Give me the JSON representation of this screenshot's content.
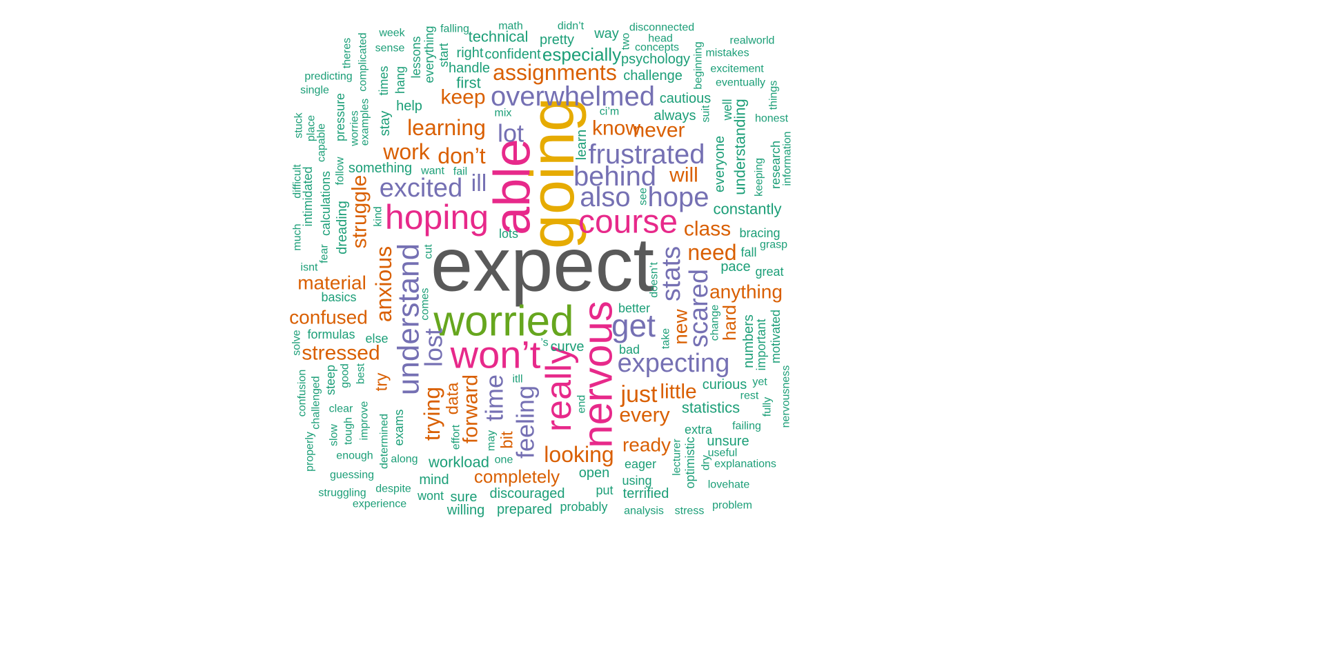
{
  "palette": {
    "gray": "#595959",
    "teal": "#1b9e77",
    "orange": "#d95f02",
    "purple": "#7570b3",
    "pink": "#e7298a",
    "green": "#66a61e",
    "gold": "#e6ab02"
  },
  "words": [
    {
      "text": "expect",
      "color": "gray"
    },
    {
      "text": "going",
      "color": "gold"
    },
    {
      "text": "worried",
      "color": "green"
    },
    {
      "text": "able",
      "color": "pink"
    },
    {
      "text": "won’t",
      "color": "pink"
    },
    {
      "text": "nervous",
      "color": "pink"
    },
    {
      "text": "really",
      "color": "pink"
    },
    {
      "text": "hoping",
      "color": "pink"
    },
    {
      "text": "course",
      "color": "pink"
    },
    {
      "text": "understand",
      "color": "purple"
    },
    {
      "text": "get",
      "color": "purple"
    },
    {
      "text": "overwhelmed",
      "color": "purple"
    },
    {
      "text": "frustrated",
      "color": "purple"
    },
    {
      "text": "behind",
      "color": "purple"
    },
    {
      "text": "also",
      "color": "purple"
    },
    {
      "text": "hope",
      "color": "purple"
    },
    {
      "text": "excited",
      "color": "purple"
    },
    {
      "text": "expecting",
      "color": "purple"
    },
    {
      "text": "stats",
      "color": "purple"
    },
    {
      "text": "scared",
      "color": "purple"
    },
    {
      "text": "time",
      "color": "purple"
    },
    {
      "text": "lost",
      "color": "purple"
    },
    {
      "text": "feeling",
      "color": "purple"
    },
    {
      "text": "lot",
      "color": "purple"
    },
    {
      "text": "ill",
      "color": "purple"
    },
    {
      "text": "assignments",
      "color": "orange"
    },
    {
      "text": "keep",
      "color": "orange"
    },
    {
      "text": "learning",
      "color": "orange"
    },
    {
      "text": "work",
      "color": "orange"
    },
    {
      "text": "don’t",
      "color": "orange"
    },
    {
      "text": "know",
      "color": "orange"
    },
    {
      "text": "never",
      "color": "orange"
    },
    {
      "text": "will",
      "color": "orange"
    },
    {
      "text": "class",
      "color": "orange"
    },
    {
      "text": "need",
      "color": "orange"
    },
    {
      "text": "struggle",
      "color": "orange"
    },
    {
      "text": "anxious",
      "color": "orange"
    },
    {
      "text": "material",
      "color": "orange"
    },
    {
      "text": "confused",
      "color": "orange"
    },
    {
      "text": "stressed",
      "color": "orange"
    },
    {
      "text": "anything",
      "color": "orange"
    },
    {
      "text": "hard",
      "color": "orange"
    },
    {
      "text": "new",
      "color": "orange"
    },
    {
      "text": "just",
      "color": "orange"
    },
    {
      "text": "little",
      "color": "orange"
    },
    {
      "text": "every",
      "color": "orange"
    },
    {
      "text": "ready",
      "color": "orange"
    },
    {
      "text": "looking",
      "color": "orange"
    },
    {
      "text": "completely",
      "color": "orange"
    },
    {
      "text": "trying",
      "color": "orange"
    },
    {
      "text": "forward",
      "color": "orange"
    },
    {
      "text": "try",
      "color": "orange"
    },
    {
      "text": "data",
      "color": "orange"
    },
    {
      "text": "bit",
      "color": "orange"
    },
    {
      "text": "especially",
      "color": "teal"
    },
    {
      "text": "technical",
      "color": "teal"
    },
    {
      "text": "confident",
      "color": "teal"
    },
    {
      "text": "right",
      "color": "teal"
    },
    {
      "text": "handle",
      "color": "teal"
    },
    {
      "text": "first",
      "color": "teal"
    },
    {
      "text": "pretty",
      "color": "teal"
    },
    {
      "text": "way",
      "color": "teal"
    },
    {
      "text": "math",
      "color": "teal"
    },
    {
      "text": "didn’t",
      "color": "teal"
    },
    {
      "text": "disconnected",
      "color": "teal"
    },
    {
      "text": "head",
      "color": "teal"
    },
    {
      "text": "concepts",
      "color": "teal"
    },
    {
      "text": "psychology",
      "color": "teal"
    },
    {
      "text": "challenge",
      "color": "teal"
    },
    {
      "text": "two",
      "color": "teal"
    },
    {
      "text": "realworld",
      "color": "teal"
    },
    {
      "text": "mistakes",
      "color": "teal"
    },
    {
      "text": "excitement",
      "color": "teal"
    },
    {
      "text": "eventually",
      "color": "teal"
    },
    {
      "text": "honest",
      "color": "teal"
    },
    {
      "text": "week",
      "color": "teal"
    },
    {
      "text": "sense",
      "color": "teal"
    },
    {
      "text": "falling",
      "color": "teal"
    },
    {
      "text": "predicting",
      "color": "teal"
    },
    {
      "text": "single",
      "color": "teal"
    },
    {
      "text": "help",
      "color": "teal"
    },
    {
      "text": "mix",
      "color": "teal"
    },
    {
      "text": "ci’m",
      "color": "teal"
    },
    {
      "text": "cautious",
      "color": "teal"
    },
    {
      "text": "always",
      "color": "teal"
    },
    {
      "text": "something",
      "color": "teal"
    },
    {
      "text": "want",
      "color": "teal"
    },
    {
      "text": "fail",
      "color": "teal"
    },
    {
      "text": "lots",
      "color": "teal"
    },
    {
      "text": "constantly",
      "color": "teal"
    },
    {
      "text": "bracing",
      "color": "teal"
    },
    {
      "text": "fall",
      "color": "teal"
    },
    {
      "text": "grasp",
      "color": "teal"
    },
    {
      "text": "pace",
      "color": "teal"
    },
    {
      "text": "great",
      "color": "teal"
    },
    {
      "text": "isnt",
      "color": "teal"
    },
    {
      "text": "basics",
      "color": "teal"
    },
    {
      "text": "formulas",
      "color": "teal"
    },
    {
      "text": "else",
      "color": "teal"
    },
    {
      "text": "’s",
      "color": "teal"
    },
    {
      "text": "curve",
      "color": "teal"
    },
    {
      "text": "better",
      "color": "teal"
    },
    {
      "text": "bad",
      "color": "teal"
    },
    {
      "text": "curious",
      "color": "teal"
    },
    {
      "text": "rest",
      "color": "teal"
    },
    {
      "text": "yet",
      "color": "teal"
    },
    {
      "text": "statistics",
      "color": "teal"
    },
    {
      "text": "extra",
      "color": "teal"
    },
    {
      "text": "failing",
      "color": "teal"
    },
    {
      "text": "unsure",
      "color": "teal"
    },
    {
      "text": "useful",
      "color": "teal"
    },
    {
      "text": "explanations",
      "color": "teal"
    },
    {
      "text": "eager",
      "color": "teal"
    },
    {
      "text": "using",
      "color": "teal"
    },
    {
      "text": "terrified",
      "color": "teal"
    },
    {
      "text": "lovehate",
      "color": "teal"
    },
    {
      "text": "analysis",
      "color": "teal"
    },
    {
      "text": "stress",
      "color": "teal"
    },
    {
      "text": "problem",
      "color": "teal"
    },
    {
      "text": "put",
      "color": "teal"
    },
    {
      "text": "probably",
      "color": "teal"
    },
    {
      "text": "prepared",
      "color": "teal"
    },
    {
      "text": "willing",
      "color": "teal"
    },
    {
      "text": "discouraged",
      "color": "teal"
    },
    {
      "text": "wont",
      "color": "teal"
    },
    {
      "text": "sure",
      "color": "teal"
    },
    {
      "text": "mind",
      "color": "teal"
    },
    {
      "text": "workload",
      "color": "teal"
    },
    {
      "text": "one",
      "color": "teal"
    },
    {
      "text": "along",
      "color": "teal"
    },
    {
      "text": "despite",
      "color": "teal"
    },
    {
      "text": "experience",
      "color": "teal"
    },
    {
      "text": "struggling",
      "color": "teal"
    },
    {
      "text": "guessing",
      "color": "teal"
    },
    {
      "text": "enough",
      "color": "teal"
    },
    {
      "text": "open",
      "color": "teal"
    },
    {
      "text": "itll",
      "color": "teal"
    },
    {
      "text": "take",
      "color": "teal"
    },
    {
      "text": "kind",
      "color": "teal"
    },
    {
      "text": "cut",
      "color": "teal"
    },
    {
      "text": "comes",
      "color": "teal"
    },
    {
      "text": "see",
      "color": "teal"
    },
    {
      "text": "doesn’t",
      "color": "teal"
    },
    {
      "text": "change",
      "color": "teal"
    },
    {
      "text": "solve",
      "color": "teal"
    },
    {
      "text": "best",
      "color": "teal"
    },
    {
      "text": "good",
      "color": "teal"
    },
    {
      "text": "steep",
      "color": "teal"
    },
    {
      "text": "clear",
      "color": "teal"
    },
    {
      "text": "tough",
      "color": "teal"
    },
    {
      "text": "improve",
      "color": "teal"
    },
    {
      "text": "slow",
      "color": "teal"
    },
    {
      "text": "challenged",
      "color": "teal"
    },
    {
      "text": "confusion",
      "color": "teal"
    },
    {
      "text": "properly",
      "color": "teal"
    },
    {
      "text": "determined",
      "color": "teal"
    },
    {
      "text": "exams",
      "color": "teal"
    },
    {
      "text": "effort",
      "color": "teal"
    },
    {
      "text": "may",
      "color": "teal"
    },
    {
      "text": "end",
      "color": "teal"
    },
    {
      "text": "lecturer",
      "color": "teal"
    },
    {
      "text": "optimistic",
      "color": "teal"
    },
    {
      "text": "dry",
      "color": "teal"
    },
    {
      "text": "numbers",
      "color": "teal"
    },
    {
      "text": "important",
      "color": "teal"
    },
    {
      "text": "motivated",
      "color": "teal"
    },
    {
      "text": "fully",
      "color": "teal"
    },
    {
      "text": "nervousness",
      "color": "teal"
    },
    {
      "text": "everyone",
      "color": "teal"
    },
    {
      "text": "understanding",
      "color": "teal"
    },
    {
      "text": "keeping",
      "color": "teal"
    },
    {
      "text": "research",
      "color": "teal"
    },
    {
      "text": "information",
      "color": "teal"
    },
    {
      "text": "well",
      "color": "teal"
    },
    {
      "text": "suit",
      "color": "teal"
    },
    {
      "text": "beginning",
      "color": "teal"
    },
    {
      "text": "things",
      "color": "teal"
    },
    {
      "text": "learn",
      "color": "teal"
    },
    {
      "text": "stay",
      "color": "teal"
    },
    {
      "text": "hang",
      "color": "teal"
    },
    {
      "text": "times",
      "color": "teal"
    },
    {
      "text": "lessons",
      "color": "teal"
    },
    {
      "text": "everything",
      "color": "teal"
    },
    {
      "text": "start",
      "color": "teal"
    },
    {
      "text": "theres",
      "color": "teal"
    },
    {
      "text": "complicated",
      "color": "teal"
    },
    {
      "text": "examples",
      "color": "teal"
    },
    {
      "text": "worries",
      "color": "teal"
    },
    {
      "text": "pressure",
      "color": "teal"
    },
    {
      "text": "stuck",
      "color": "teal"
    },
    {
      "text": "place",
      "color": "teal"
    },
    {
      "text": "capable",
      "color": "teal"
    },
    {
      "text": "difficult",
      "color": "teal"
    },
    {
      "text": "intimidated",
      "color": "teal"
    },
    {
      "text": "calculations",
      "color": "teal"
    },
    {
      "text": "follow",
      "color": "teal"
    },
    {
      "text": "dreading",
      "color": "teal"
    },
    {
      "text": "much",
      "color": "teal"
    },
    {
      "text": "fear",
      "color": "teal"
    }
  ]
}
